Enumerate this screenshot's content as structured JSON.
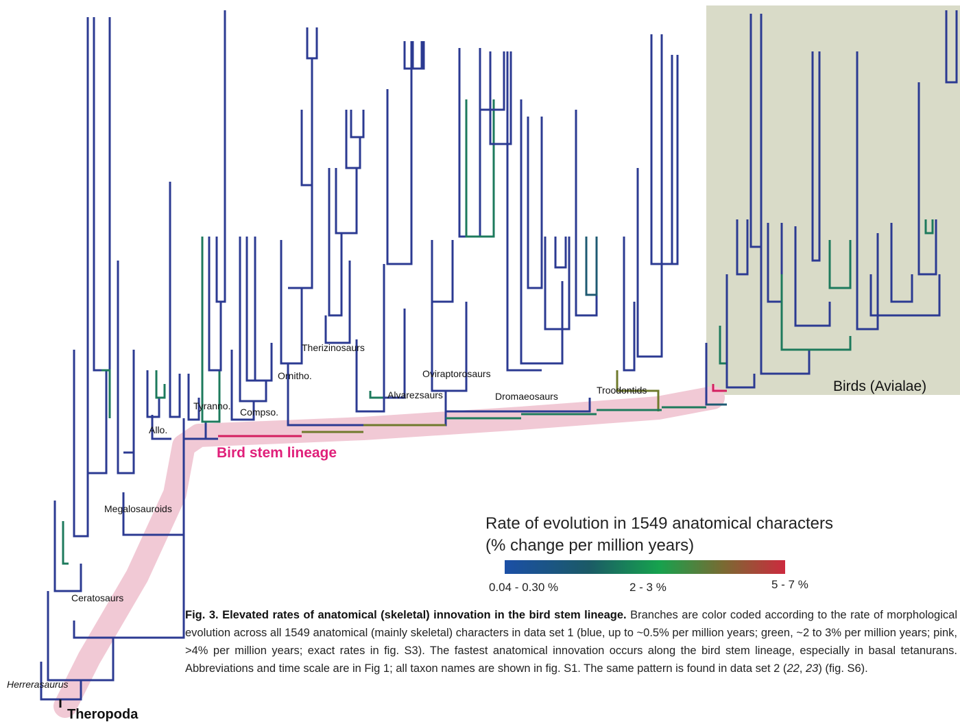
{
  "labels": {
    "herrerasaurus": "Herrerasaurus",
    "theropoda": "Theropoda",
    "ceratosaurs": "Ceratosaurs",
    "megalosauroids": "Megalosauroids",
    "allo": "Allo.",
    "tyranno": "Tyranno.",
    "compso": "Compso.",
    "ornitho": "Ornitho.",
    "therizinosaurs": "Therizinosaurs",
    "alvarezsaurs": "Alvarezsaurs",
    "oviraptorosaurs": "Oviraptorosaurs",
    "dromaeosaurs": "Dromaeosaurs",
    "troodontids": "Troodontids",
    "birds": "Birds (Avialae)",
    "bird_stem": "Bird stem lineage"
  },
  "legend": {
    "title_lines": [
      "Rate of evolution in 1549 anatomical characters",
      "(% change per million years)"
    ],
    "labels": [
      "0.04 - 0.30 %",
      "2 - 3 %",
      "5 - 7 %"
    ]
  },
  "caption": {
    "title": "Fig. 3. Elevated rates of anatomical (skeletal) innovation in the bird stem lineage.",
    "parts": [
      " Branches are color coded according to the rate of morphological evolution across all 1549 anatomical (mainly skeletal) characters in data set 1 (blue, up to ~0.5% per million years; green, ~2 to 3% per million years; pink, >4% per million years; exact rates in fig. S3). The fastest anatomical innovation occurs along the bird stem lineage, especially in basal tetanurans. Abbreviations and time scale are in Fig 1; all taxon names are shown in fig. S1. The same pattern is found in data set 2 (",
      "22",
      ", ",
      "23",
      ") (fig. S6)."
    ]
  }
}
